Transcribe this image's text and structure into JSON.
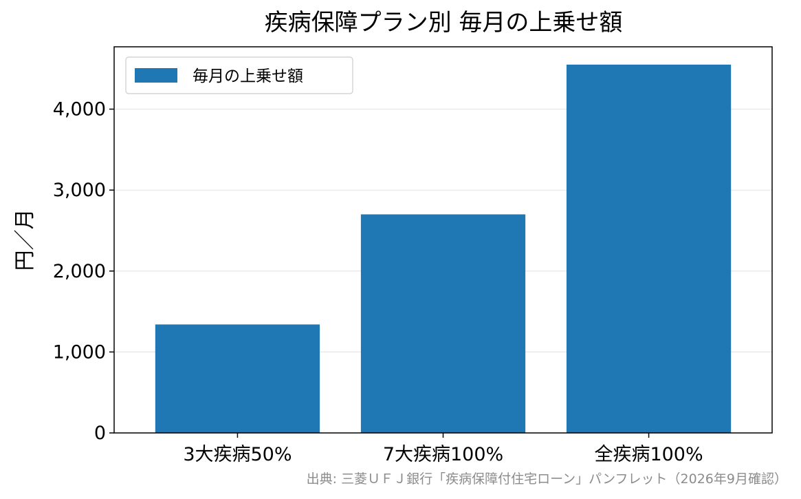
{
  "chart_data": {
    "type": "bar",
    "title": "疾病保障プラン別 毎月の上乗せ額",
    "ylabel": "円／月",
    "xlabel": "",
    "categories": [
      "3大疾病50%",
      "7大疾病100%",
      "全疾病100%"
    ],
    "series": [
      {
        "name": "毎月の上乗せ額",
        "values": [
          1340,
          2700,
          4550
        ],
        "color": "#1f77b4"
      }
    ],
    "ylim": [
      0,
      4770
    ],
    "yticks": [
      0,
      1000,
      2000,
      3000,
      4000
    ],
    "ytick_labels": [
      "0",
      "1,000",
      "2,000",
      "3,000",
      "4,000"
    ],
    "grid": "y",
    "legend_position": "top-left"
  },
  "source_note": "出典: 三菱ＵＦＪ銀行「疾病保障付住宅ローン」パンフレット（2026年9月確認）"
}
